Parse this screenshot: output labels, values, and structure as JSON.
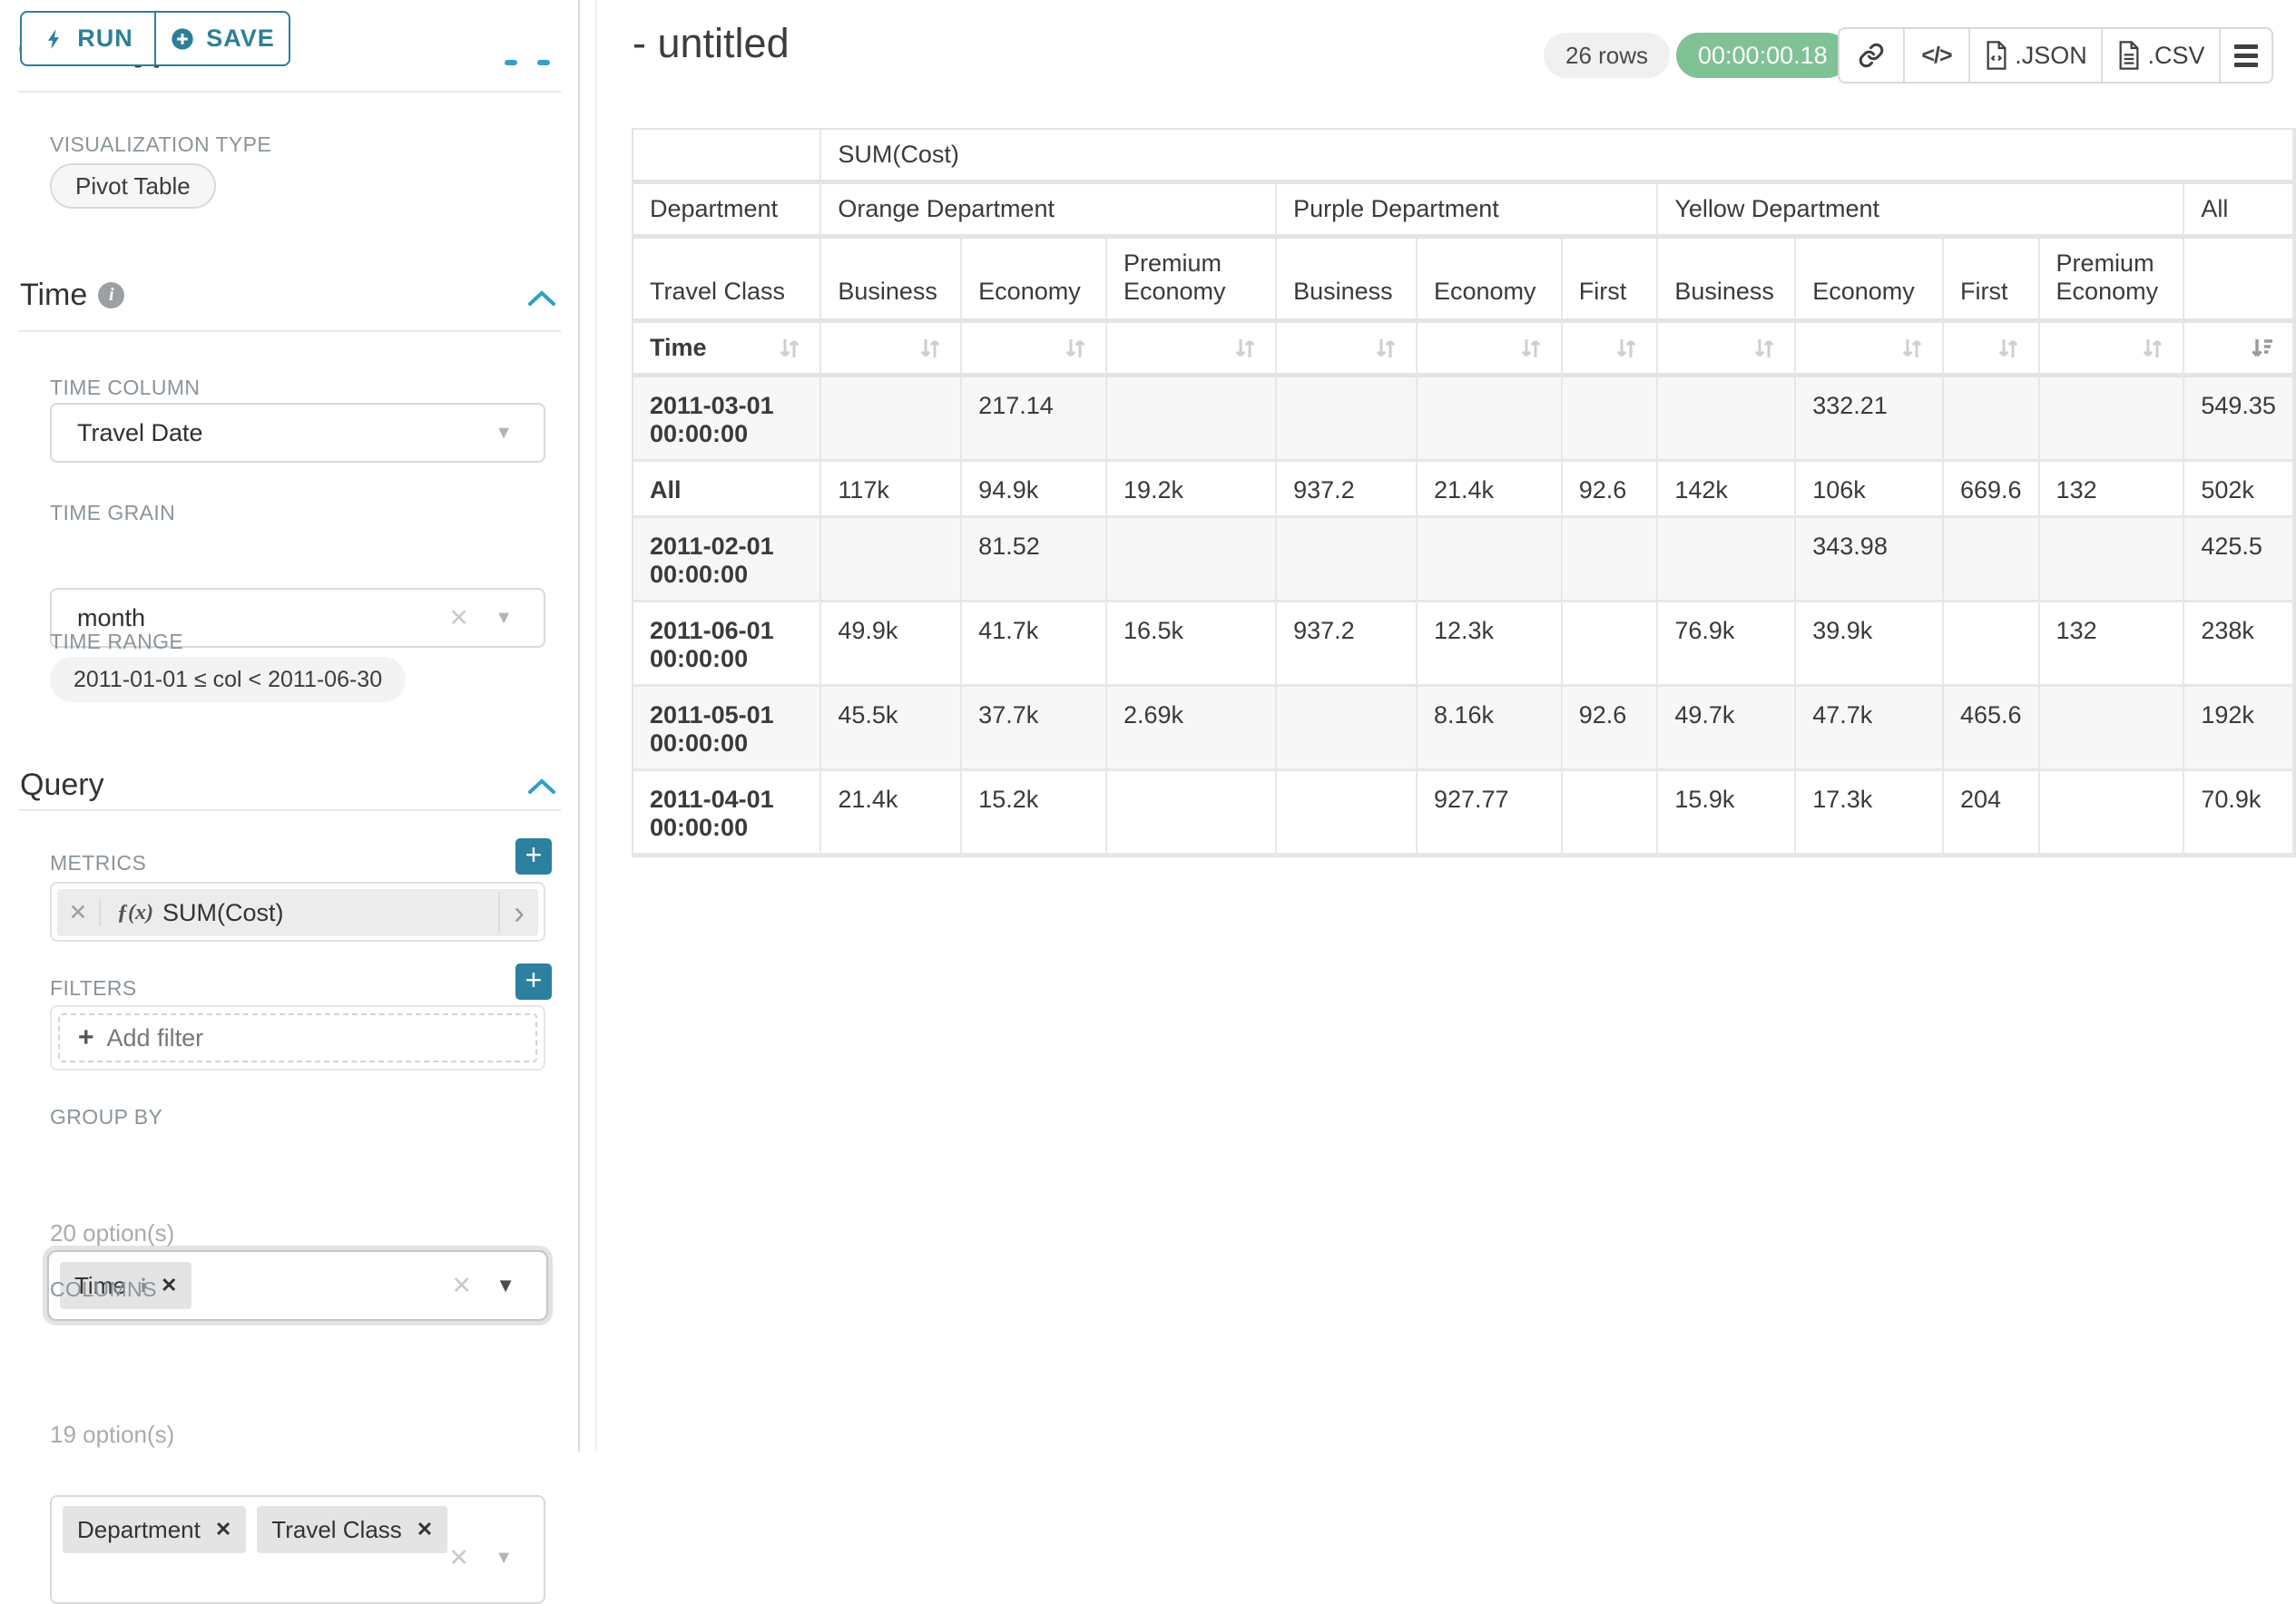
{
  "icons": {
    "info": "i",
    "clear": "✕",
    "clear_light": "✕",
    "caret_down": "▼",
    "chevron_right": "›",
    "plus": "+",
    "code": "</>",
    "fx": "ƒ(x)"
  },
  "colors": {
    "primary_teal": "#2d7f98",
    "plus_button_teal": "#2c80a0",
    "timer_green": "#7fc296",
    "badge_gray": "#f0f0f0",
    "stripe_gray": "#f7f7f7",
    "border_gray": "#e7e7e7"
  },
  "sidebar": {
    "run_label": "RUN",
    "save_label": "SAVE",
    "panel_title": "Chart Type",
    "visualization_type_label": "VISUALIZATION TYPE",
    "visualization_type_value": "Pivot Table",
    "time_section": {
      "title": "Time",
      "time_column_label": "TIME COLUMN",
      "time_column_value": "Travel Date",
      "time_grain_label": "TIME GRAIN",
      "time_grain_value": "month",
      "time_range_label": "TIME RANGE",
      "time_range_value": "2011-01-01 ≤ col < 2011-06-30"
    },
    "query_section": {
      "title": "Query",
      "metrics_label": "METRICS",
      "metric_prefix": "ƒ(x)",
      "metric_value": "SUM(Cost)",
      "filters_label": "FILTERS",
      "add_filter_label": "Add filter",
      "group_by_label": "GROUP BY",
      "group_by_chips": [
        "Time"
      ],
      "group_by_options_count": "20 option(s)",
      "columns_label": "COLUMNS",
      "columns_chips": [
        "Department",
        "Travel Class"
      ],
      "columns_options_count": "19 option(s)"
    }
  },
  "header": {
    "title": "- untitled",
    "rows_badge": "26 rows",
    "timer_badge": "00:00:00.18",
    "json_label": ".JSON",
    "csv_label": ".CSV"
  },
  "chart_data": {
    "type": "table",
    "title": "SUM(Cost)",
    "metric_label": "SUM(Cost)",
    "row_dimension_label": "Time",
    "corner": {
      "department_label": "Department",
      "travel_class_label": "Travel Class",
      "time_label": "Time"
    },
    "column_groups": [
      {
        "label": "Orange Department",
        "children": [
          "Business",
          "Economy",
          "Premium Economy"
        ]
      },
      {
        "label": "Purple Department",
        "children": [
          "Business",
          "Economy",
          "First"
        ]
      },
      {
        "label": "Yellow Department",
        "children": [
          "Business",
          "Economy",
          "First",
          "Premium Economy"
        ]
      },
      {
        "label": "All",
        "children": [
          ""
        ]
      }
    ],
    "rows": [
      {
        "label": "2011-03-01 00:00:00",
        "values": [
          "",
          "217.14",
          "",
          "",
          "",
          "",
          "",
          "332.21",
          "",
          "",
          "549.35"
        ]
      },
      {
        "label": "All",
        "values": [
          "117k",
          "94.9k",
          "19.2k",
          "937.2",
          "21.4k",
          "92.6",
          "142k",
          "106k",
          "669.6",
          "132",
          "502k"
        ]
      },
      {
        "label": "2011-02-01 00:00:00",
        "values": [
          "",
          "81.52",
          "",
          "",
          "",
          "",
          "",
          "343.98",
          "",
          "",
          "425.5"
        ]
      },
      {
        "label": "2011-06-01 00:00:00",
        "values": [
          "49.9k",
          "41.7k",
          "16.5k",
          "937.2",
          "12.3k",
          "",
          "76.9k",
          "39.9k",
          "",
          "132",
          "238k"
        ]
      },
      {
        "label": "2011-05-01 00:00:00",
        "values": [
          "45.5k",
          "37.7k",
          "2.69k",
          "",
          "8.16k",
          "92.6",
          "49.7k",
          "47.7k",
          "465.6",
          "",
          "192k"
        ]
      },
      {
        "label": "2011-04-01 00:00:00",
        "values": [
          "21.4k",
          "15.2k",
          "",
          "",
          "927.77",
          "",
          "15.9k",
          "17.3k",
          "204",
          "",
          "70.9k"
        ]
      }
    ],
    "sorted_column": "All",
    "sort_direction": "descending"
  }
}
